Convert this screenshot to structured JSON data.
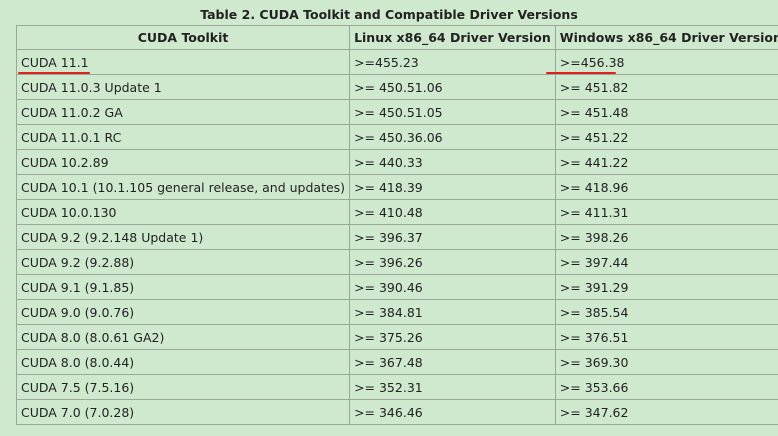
{
  "title": "Table 2. CUDA Toolkit and Compatible Driver Versions",
  "table": {
    "headers": [
      "CUDA Toolkit",
      "Linux x86_64 Driver Version",
      "Windows x86_64 Driver Version"
    ],
    "rows": [
      [
        "CUDA 11.1",
        ">=455.23",
        ">=456.38"
      ],
      [
        "CUDA 11.0.3 Update 1",
        ">= 450.51.06",
        ">= 451.82"
      ],
      [
        "CUDA 11.0.2 GA",
        ">= 450.51.05",
        ">= 451.48"
      ],
      [
        "CUDA 11.0.1 RC",
        ">= 450.36.06",
        ">= 451.22"
      ],
      [
        "CUDA 10.2.89",
        ">= 440.33",
        ">= 441.22"
      ],
      [
        "CUDA 10.1 (10.1.105 general release, and updates)",
        ">= 418.39",
        ">= 418.96"
      ],
      [
        "CUDA 10.0.130",
        ">= 410.48",
        ">= 411.31"
      ],
      [
        "CUDA 9.2 (9.2.148 Update 1)",
        ">= 396.37",
        ">= 398.26"
      ],
      [
        "CUDA 9.2 (9.2.88)",
        ">= 396.26",
        ">= 397.44"
      ],
      [
        "CUDA 9.1 (9.1.85)",
        ">= 390.46",
        ">= 391.29"
      ],
      [
        "CUDA 9.0 (9.0.76)",
        ">= 384.81",
        ">= 385.54"
      ],
      [
        "CUDA 8.0 (8.0.61 GA2)",
        ">= 375.26",
        ">= 376.51"
      ],
      [
        "CUDA 8.0 (8.0.44)",
        ">= 367.48",
        ">= 369.30"
      ],
      [
        "CUDA 7.5 (7.5.16)",
        ">= 352.31",
        ">= 353.66"
      ],
      [
        "CUDA 7.0 (7.0.28)",
        ">= 346.46",
        ">= 347.62"
      ]
    ]
  }
}
